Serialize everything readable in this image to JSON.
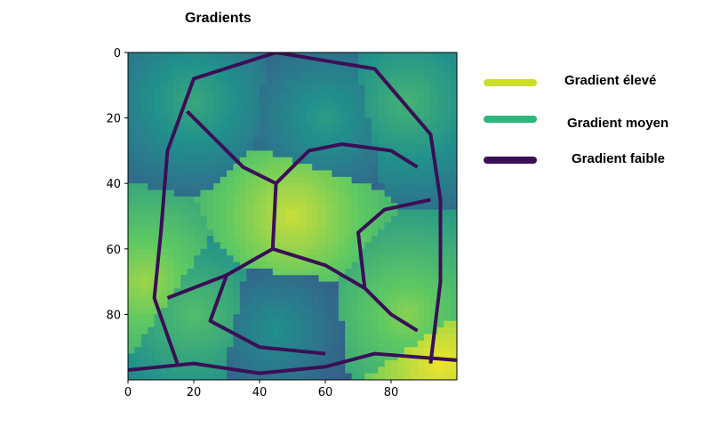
{
  "chart_data": {
    "type": "heatmap",
    "title": "Gradients",
    "xlabel": "",
    "ylabel": "",
    "colormap": "viridis",
    "x_ticks": [
      "0",
      "20",
      "40",
      "60",
      "80"
    ],
    "y_ticks": [
      "0",
      "20",
      "40",
      "60",
      "80"
    ],
    "xlim": [
      0,
      100
    ],
    "ylim": [
      100,
      0
    ],
    "grid": false,
    "legend_position": "right",
    "legend": [
      {
        "name": "Gradient élevé",
        "color": "#c8de2a"
      },
      {
        "name": "Gradient moyen",
        "color": "#2eb57c"
      },
      {
        "name": "Gradient faible",
        "color": "#3b0f56"
      }
    ],
    "regions": [
      {
        "kind": "level",
        "x": 50,
        "y": 50,
        "value": 0.92
      },
      {
        "kind": "level",
        "x": 60,
        "y": 20,
        "value": 0.55
      },
      {
        "kind": "level",
        "x": 20,
        "y": 15,
        "value": 0.6
      },
      {
        "kind": "level",
        "x": 85,
        "y": 15,
        "value": 0.65
      },
      {
        "kind": "level",
        "x": 20,
        "y": 80,
        "value": 0.7
      },
      {
        "kind": "level",
        "x": 85,
        "y": 80,
        "value": 0.82
      },
      {
        "kind": "level",
        "x": 5,
        "y": 70,
        "value": 0.85
      },
      {
        "kind": "level",
        "x": 45,
        "y": 85,
        "value": 0.5
      },
      {
        "kind": "level",
        "x": 95,
        "y": 95,
        "value": 0.98
      }
    ],
    "boundaries": [
      [
        [
          45,
          0
        ],
        [
          20,
          8
        ],
        [
          12,
          30
        ],
        [
          10,
          55
        ],
        [
          8,
          75
        ],
        [
          15,
          95
        ]
      ],
      [
        [
          45,
          0
        ],
        [
          75,
          5
        ],
        [
          92,
          25
        ],
        [
          95,
          45
        ],
        [
          95,
          70
        ],
        [
          92,
          95
        ]
      ],
      [
        [
          45,
          40
        ],
        [
          35,
          35
        ],
        [
          25,
          25
        ],
        [
          18,
          18
        ]
      ],
      [
        [
          45,
          40
        ],
        [
          55,
          30
        ],
        [
          65,
          28
        ],
        [
          80,
          30
        ],
        [
          88,
          35
        ]
      ],
      [
        [
          45,
          40
        ],
        [
          44,
          60
        ],
        [
          30,
          68
        ],
        [
          12,
          75
        ]
      ],
      [
        [
          44,
          60
        ],
        [
          60,
          65
        ],
        [
          72,
          72
        ],
        [
          80,
          80
        ],
        [
          88,
          85
        ]
      ],
      [
        [
          72,
          72
        ],
        [
          70,
          55
        ],
        [
          78,
          48
        ],
        [
          92,
          45
        ]
      ],
      [
        [
          30,
          68
        ],
        [
          25,
          82
        ],
        [
          40,
          90
        ],
        [
          60,
          92
        ]
      ],
      [
        [
          0,
          97
        ],
        [
          20,
          95
        ],
        [
          40,
          98
        ],
        [
          60,
          96
        ],
        [
          75,
          92
        ],
        [
          100,
          94
        ]
      ]
    ]
  }
}
